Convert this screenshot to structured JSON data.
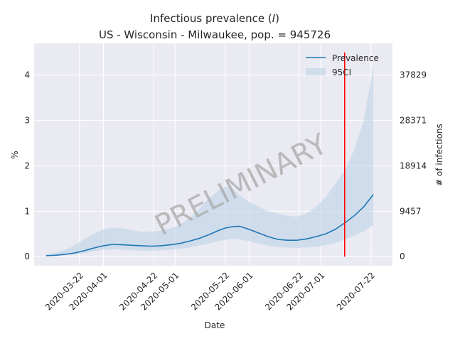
{
  "chart_data": {
    "type": "line",
    "title_line1_prefix": "Infectious prevalence (",
    "title_line1_var": "I",
    "title_line1_suffix": ")",
    "title_line2": "US - Wisconsin - Milwaukee, pop. = 945726",
    "xlabel": "Date",
    "ylabel": "%",
    "ylabel_right": "# of infections",
    "watermark": "PRELIMINARY",
    "x_ticks": [
      "2020-03-22",
      "2020-04-01",
      "2020-04-22",
      "2020-05-01",
      "2020-05-22",
      "2020-06-01",
      "2020-06-22",
      "2020-07-01",
      "2020-07-22"
    ],
    "y_ticks": [
      "0",
      "1",
      "2",
      "3",
      "4"
    ],
    "y_ticks_values": [
      0,
      1,
      2,
      3,
      4
    ],
    "y_ticks_right": [
      "0",
      "9457",
      "18914",
      "28371",
      "37829"
    ],
    "y_ticks_right_values": [
      0,
      1,
      2,
      3,
      4
    ],
    "xlim": [
      "2020-03-03",
      "2020-07-31"
    ],
    "ylim": [
      -0.2,
      4.7
    ],
    "grid": true,
    "legend_position": "top-right",
    "colors": {
      "background": "#eaeaf2",
      "grid": "#ffffff",
      "line": "#1f77b4",
      "band": "#b8cfe6",
      "marker": "#ff0000",
      "watermark": "#a9a9a9"
    },
    "series": [
      {
        "name": "Prevalence",
        "x": [
          "2020-03-08",
          "2020-03-12",
          "2020-03-16",
          "2020-03-20",
          "2020-03-24",
          "2020-03-28",
          "2020-04-01",
          "2020-04-05",
          "2020-04-09",
          "2020-04-13",
          "2020-04-17",
          "2020-04-21",
          "2020-04-25",
          "2020-04-29",
          "2020-05-03",
          "2020-05-07",
          "2020-05-11",
          "2020-05-15",
          "2020-05-19",
          "2020-05-22",
          "2020-05-25",
          "2020-05-28",
          "2020-06-01",
          "2020-06-05",
          "2020-06-09",
          "2020-06-13",
          "2020-06-17",
          "2020-06-21",
          "2020-06-25",
          "2020-06-29",
          "2020-07-03",
          "2020-07-07",
          "2020-07-11",
          "2020-07-15",
          "2020-07-19",
          "2020-07-23"
        ],
        "y": [
          0.02,
          0.03,
          0.05,
          0.08,
          0.13,
          0.19,
          0.24,
          0.27,
          0.26,
          0.25,
          0.24,
          0.23,
          0.24,
          0.26,
          0.29,
          0.34,
          0.4,
          0.48,
          0.57,
          0.63,
          0.66,
          0.67,
          0.6,
          0.52,
          0.44,
          0.38,
          0.36,
          0.36,
          0.39,
          0.44,
          0.5,
          0.6,
          0.74,
          0.9,
          1.1,
          1.37
        ]
      }
    ],
    "ci_band": {
      "name": "95CI",
      "x": [
        "2020-03-08",
        "2020-03-12",
        "2020-03-16",
        "2020-03-20",
        "2020-03-24",
        "2020-03-28",
        "2020-04-01",
        "2020-04-05",
        "2020-04-09",
        "2020-04-13",
        "2020-04-17",
        "2020-04-21",
        "2020-04-25",
        "2020-04-29",
        "2020-05-03",
        "2020-05-07",
        "2020-05-11",
        "2020-05-15",
        "2020-05-19",
        "2020-05-22",
        "2020-05-25",
        "2020-05-28",
        "2020-06-01",
        "2020-06-05",
        "2020-06-09",
        "2020-06-13",
        "2020-06-17",
        "2020-06-21",
        "2020-06-25",
        "2020-06-29",
        "2020-07-03",
        "2020-07-07",
        "2020-07-11",
        "2020-07-15",
        "2020-07-19",
        "2020-07-23"
      ],
      "lower": [
        0.01,
        0.02,
        0.03,
        0.05,
        0.08,
        0.12,
        0.15,
        0.16,
        0.15,
        0.14,
        0.13,
        0.13,
        0.14,
        0.15,
        0.17,
        0.2,
        0.24,
        0.29,
        0.34,
        0.37,
        0.39,
        0.38,
        0.34,
        0.29,
        0.24,
        0.21,
        0.2,
        0.19,
        0.2,
        0.22,
        0.25,
        0.3,
        0.38,
        0.46,
        0.56,
        0.7
      ],
      "upper": [
        0.05,
        0.09,
        0.15,
        0.25,
        0.38,
        0.5,
        0.6,
        0.64,
        0.62,
        0.58,
        0.55,
        0.55,
        0.57,
        0.62,
        0.7,
        0.85,
        1.05,
        1.28,
        1.45,
        1.55,
        1.5,
        1.35,
        1.2,
        1.1,
        1.0,
        0.95,
        0.9,
        0.88,
        0.95,
        1.1,
        1.3,
        1.6,
        1.9,
        2.35,
        3.0,
        4.2
      ]
    },
    "vline": {
      "x": "2020-07-11",
      "y": [
        0,
        4.5
      ]
    }
  }
}
